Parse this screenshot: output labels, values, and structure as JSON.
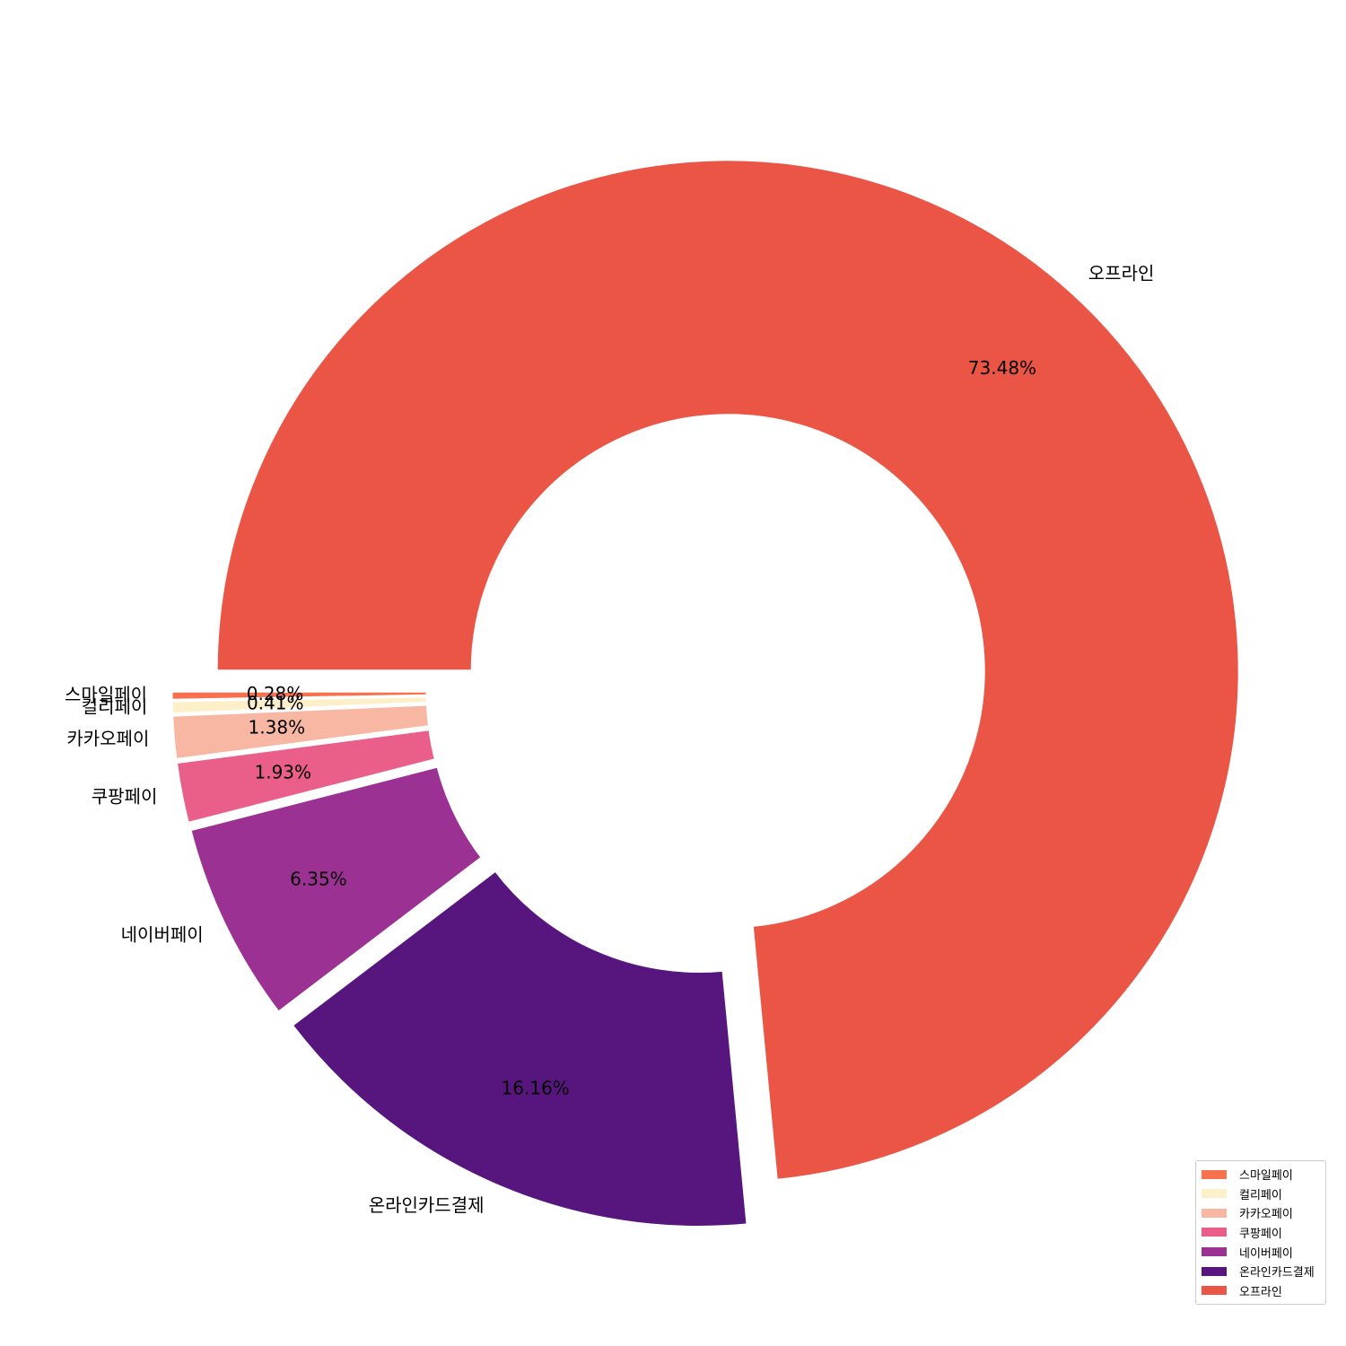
{
  "chart_data": {
    "type": "pie",
    "donut": true,
    "start_angle_deg": 180,
    "direction": "counterclockwise",
    "labels": [
      "스마일페이",
      "컬리페이",
      "카카오페이",
      "쿠팡페이",
      "네이버페이",
      "온라인카드결제",
      "오프라인"
    ],
    "values": [
      0.28,
      0.41,
      1.38,
      1.93,
      6.35,
      16.16,
      73.48
    ],
    "value_labels": [
      "0.28%",
      "0.41%",
      "1.38%",
      "1.93%",
      "6.35%",
      "16.16%",
      "73.48%"
    ],
    "colors": [
      "#f8714f",
      "#fdf0c9",
      "#f7b7a3",
      "#ea5f89",
      "#9b3192",
      "#57167e",
      "#ea5545"
    ],
    "legend": {
      "position": "lower right",
      "entries": [
        "스마일페이",
        "컬리페이",
        "카카오페이",
        "쿠팡페이",
        "네이버페이",
        "온라인카드결제",
        "오프라인"
      ]
    }
  }
}
